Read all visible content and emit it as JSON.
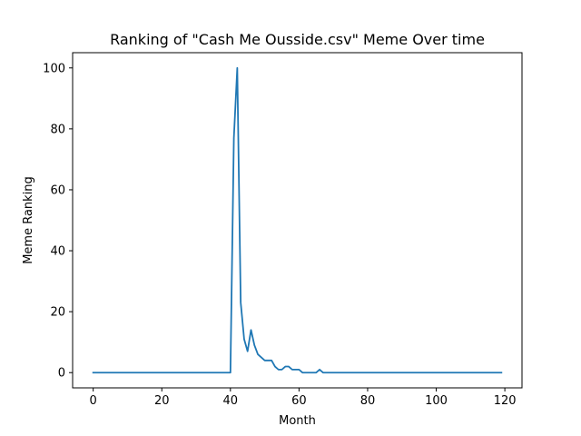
{
  "chart_data": {
    "type": "line",
    "title": "Ranking of \"Cash Me Ousside.csv\" Meme Over time",
    "xlabel": "Month",
    "ylabel": "Meme Ranking",
    "xlim": [
      -6,
      125
    ],
    "ylim": [
      -5,
      105
    ],
    "xticks": [
      0,
      20,
      40,
      60,
      80,
      100,
      120
    ],
    "yticks": [
      0,
      20,
      40,
      60,
      80,
      100
    ],
    "grid": false,
    "series_color": "#1f77b4",
    "x": [
      0,
      1,
      2,
      3,
      4,
      5,
      6,
      7,
      8,
      9,
      10,
      11,
      12,
      13,
      14,
      15,
      16,
      17,
      18,
      19,
      20,
      21,
      22,
      23,
      24,
      25,
      26,
      27,
      28,
      29,
      30,
      31,
      32,
      33,
      34,
      35,
      36,
      37,
      38,
      39,
      40,
      41,
      42,
      43,
      44,
      45,
      46,
      47,
      48,
      49,
      50,
      51,
      52,
      53,
      54,
      55,
      56,
      57,
      58,
      59,
      60,
      61,
      62,
      63,
      64,
      65,
      66,
      67,
      68,
      69,
      70,
      71,
      72,
      73,
      74,
      75,
      76,
      77,
      78,
      79,
      80,
      81,
      82,
      83,
      84,
      85,
      86,
      87,
      88,
      89,
      90,
      91,
      92,
      93,
      94,
      95,
      96,
      97,
      98,
      99,
      100,
      101,
      102,
      103,
      104,
      105,
      106,
      107,
      108,
      109,
      110,
      111,
      112,
      113,
      114,
      115,
      116,
      117,
      118,
      119
    ],
    "y": [
      0,
      0,
      0,
      0,
      0,
      0,
      0,
      0,
      0,
      0,
      0,
      0,
      0,
      0,
      0,
      0,
      0,
      0,
      0,
      0,
      0,
      0,
      0,
      0,
      0,
      0,
      0,
      0,
      0,
      0,
      0,
      0,
      0,
      0,
      0,
      0,
      0,
      0,
      0,
      0,
      0,
      77,
      100,
      23,
      11,
      7,
      14,
      9,
      6,
      5,
      4,
      4,
      4,
      2,
      1,
      1,
      2,
      2,
      1,
      1,
      1,
      0,
      0,
      0,
      0,
      0,
      1,
      0,
      0,
      0,
      0,
      0,
      0,
      0,
      0,
      0,
      0,
      0,
      0,
      0,
      0,
      0,
      0,
      0,
      0,
      0,
      0,
      0,
      0,
      0,
      0,
      0,
      0,
      0,
      0,
      0,
      0,
      0,
      0,
      0,
      0,
      0,
      0,
      0,
      0,
      0,
      0,
      0,
      0,
      0,
      0,
      0,
      0,
      0,
      0,
      0,
      0,
      0,
      0,
      0
    ]
  }
}
